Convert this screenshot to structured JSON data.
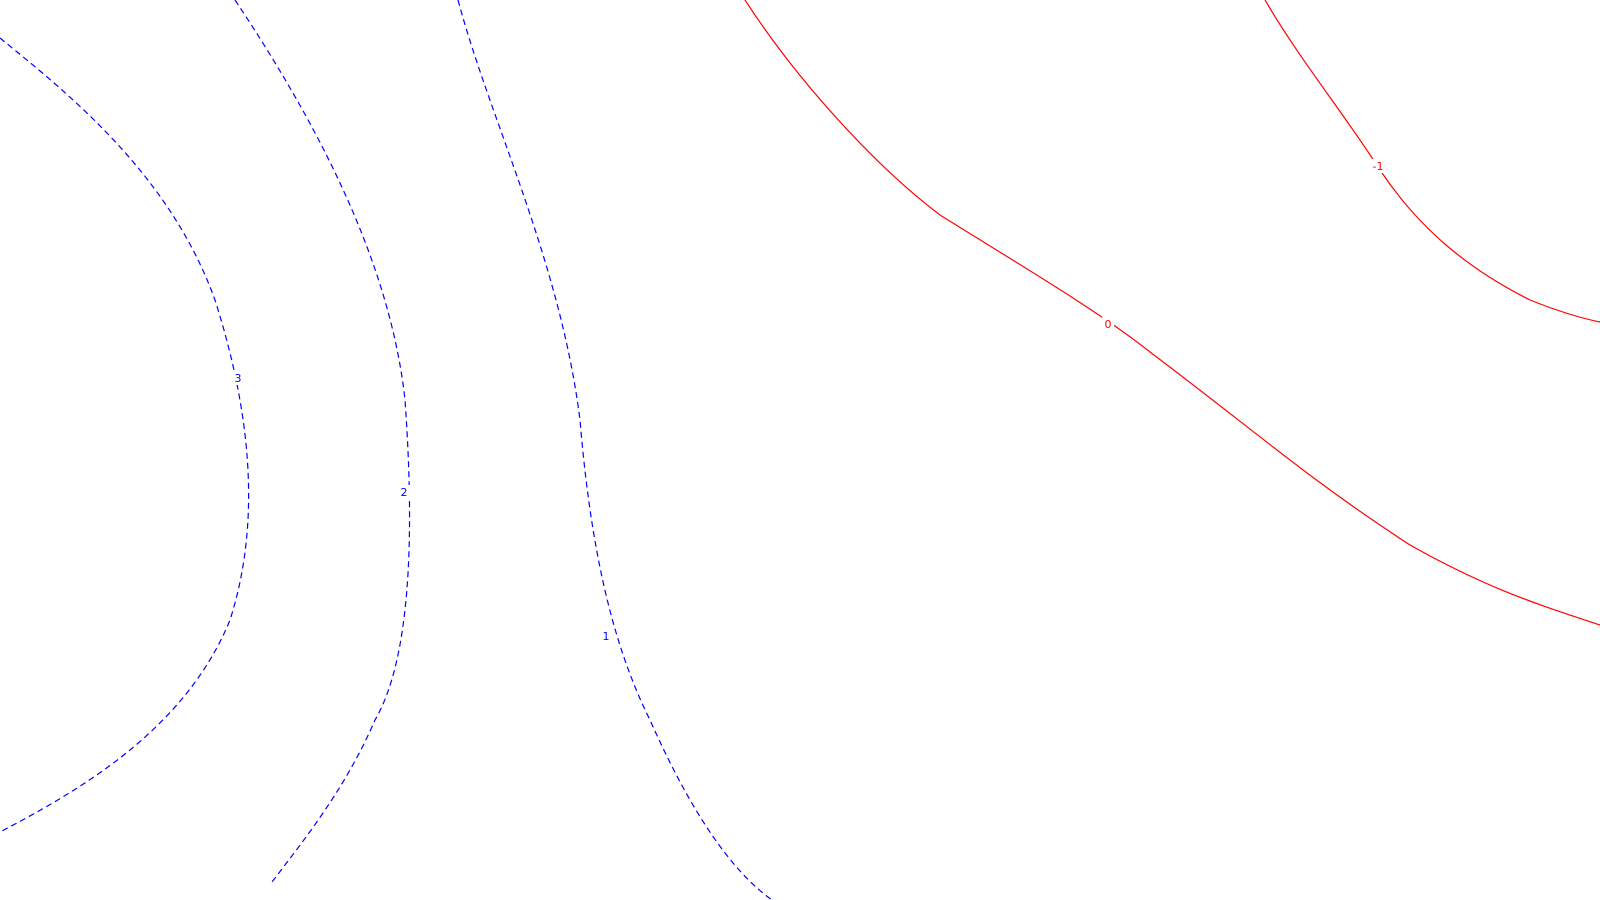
{
  "chart_data": {
    "type": "contour",
    "title": "",
    "xlabel": "",
    "ylabel": "",
    "grid": false,
    "legend": "none",
    "colors": {
      "positive": "#0000ff",
      "negative": "#ff0000",
      "background": "#ffffff"
    },
    "line_styles": {
      "positive": "dashed",
      "zero_and_negative": "solid"
    },
    "levels": [
      {
        "value": 3,
        "label": "3"
      },
      {
        "value": 2,
        "label": "2"
      },
      {
        "value": 1,
        "label": "1"
      },
      {
        "value": 0,
        "label": "0"
      },
      {
        "value": -1,
        "label": "-1"
      }
    ]
  }
}
